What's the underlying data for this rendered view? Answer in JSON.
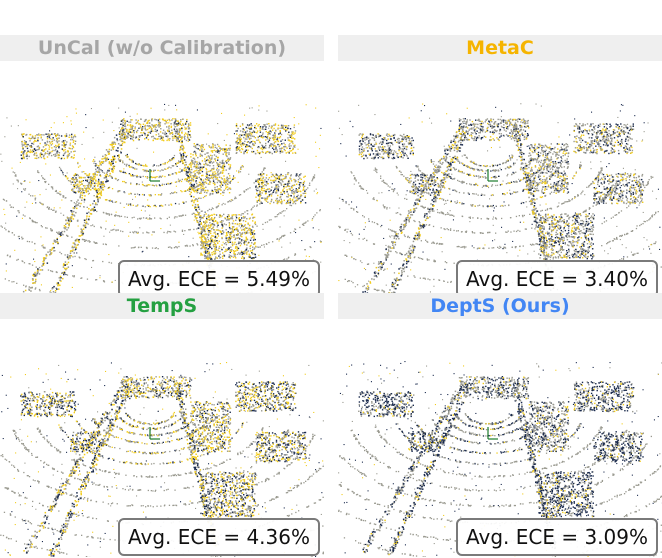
{
  "colors": {
    "title_bg": "#efefef",
    "point_gray": "#9a9a90",
    "point_yellow": "#f2cc1c",
    "point_navy": "#1b2b4e",
    "box_border": "#7a7a7a"
  },
  "panels": [
    {
      "id": "uncal",
      "title": "UnCal (w/o Calibration)",
      "title_color": "#a6a6a6",
      "ece_label": "Avg. ECE = 5.49%",
      "coverage": {
        "yellow": 0.45,
        "navy": 0.18
      }
    },
    {
      "id": "metac",
      "title": "MetaC",
      "title_color": "#f5b400",
      "ece_label": "Avg. ECE = 3.40%",
      "coverage": {
        "yellow": 0.18,
        "navy": 0.28
      }
    },
    {
      "id": "temps",
      "title": "TempS",
      "title_color": "#24a041",
      "ece_label": "Avg. ECE = 4.36%",
      "coverage": {
        "yellow": 0.35,
        "navy": 0.35
      }
    },
    {
      "id": "depts",
      "title": "DeptS (Ours)",
      "title_color": "#4286f4",
      "ece_label": "Avg. ECE = 3.09%",
      "coverage": {
        "yellow": 0.12,
        "navy": 0.55
      }
    }
  ]
}
